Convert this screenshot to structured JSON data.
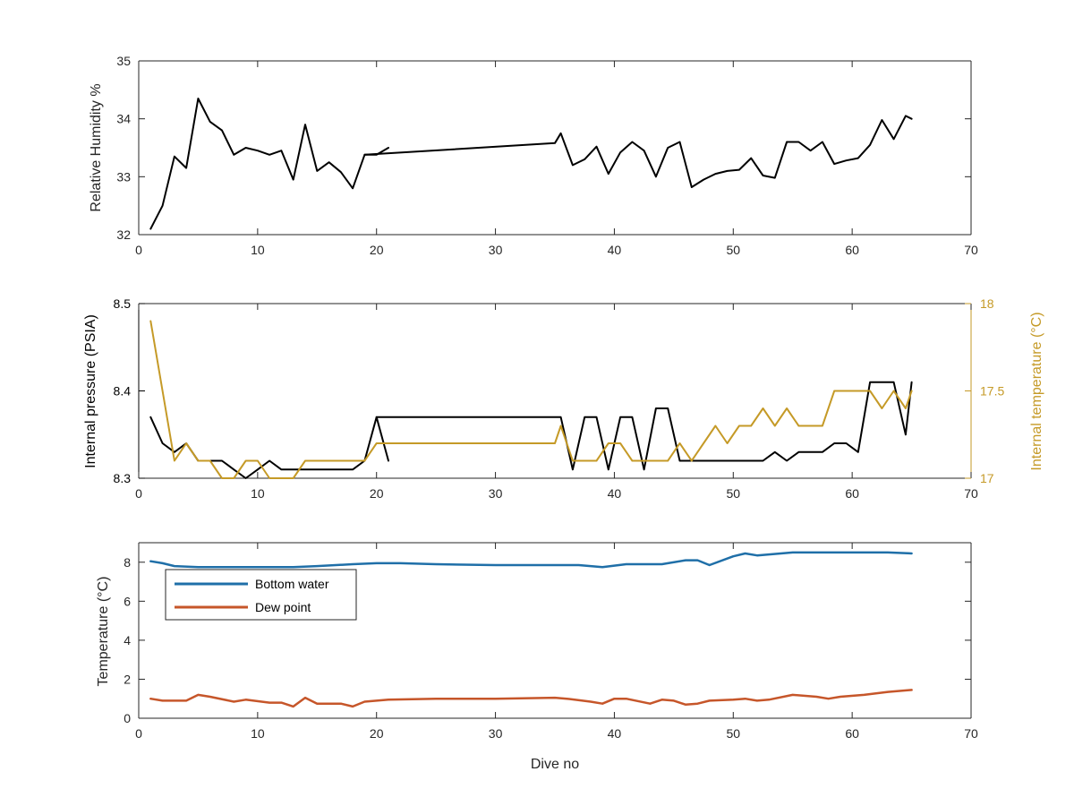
{
  "chart_data": [
    {
      "type": "line",
      "ylabel": "Relative Humidity %",
      "xlim": [
        0,
        70
      ],
      "ylim": [
        32,
        35
      ],
      "xticks": [
        0,
        10,
        20,
        30,
        40,
        50,
        60,
        70
      ],
      "yticks": [
        32,
        33,
        34,
        35
      ],
      "grid": false,
      "series": [
        {
          "color": "#000000",
          "segments": [
            [
              [
                1,
                32.1
              ],
              [
                2,
                32.5
              ],
              [
                3,
                33.35
              ],
              [
                4,
                33.15
              ],
              [
                5,
                34.35
              ],
              [
                6,
                33.95
              ],
              [
                7,
                33.8
              ],
              [
                8,
                33.38
              ],
              [
                9,
                33.5
              ],
              [
                10,
                33.45
              ],
              [
                11,
                33.38
              ],
              [
                12,
                33.45
              ],
              [
                13,
                32.95
              ],
              [
                14,
                33.9
              ],
              [
                15,
                33.1
              ],
              [
                16,
                33.25
              ],
              [
                17,
                33.08
              ],
              [
                18,
                32.8
              ],
              [
                19,
                33.38
              ],
              [
                20,
                33.38
              ],
              [
                21,
                33.5
              ]
            ],
            [
              [
                19,
                33.38
              ],
              [
                35,
                33.58
              ],
              [
                35.5,
                33.75
              ],
              [
                36.5,
                33.2
              ],
              [
                37.5,
                33.3
              ],
              [
                38.5,
                33.52
              ],
              [
                39.5,
                33.05
              ],
              [
                40.5,
                33.42
              ],
              [
                41.5,
                33.6
              ],
              [
                42.5,
                33.45
              ],
              [
                43.5,
                33.0
              ],
              [
                44.5,
                33.5
              ],
              [
                45.5,
                33.6
              ],
              [
                46.5,
                32.82
              ],
              [
                47.5,
                32.95
              ],
              [
                48.5,
                33.05
              ],
              [
                49.5,
                33.1
              ],
              [
                50.5,
                33.12
              ],
              [
                51.5,
                33.32
              ],
              [
                52.5,
                33.02
              ],
              [
                53.5,
                32.98
              ],
              [
                54.5,
                33.6
              ],
              [
                55.5,
                33.6
              ],
              [
                56.5,
                33.45
              ],
              [
                57.5,
                33.6
              ],
              [
                58.5,
                33.22
              ],
              [
                59.5,
                33.28
              ],
              [
                60.5,
                33.32
              ],
              [
                61.5,
                33.55
              ],
              [
                62.5,
                33.98
              ],
              [
                63.5,
                33.65
              ],
              [
                64.5,
                34.05
              ],
              [
                65,
                34.0
              ]
            ]
          ]
        }
      ]
    },
    {
      "type": "line",
      "ylabel": "Internal pressure (PSIA)",
      "y2label": "Internal temperature (°C)",
      "xlim": [
        0,
        70
      ],
      "ylim": [
        8.3,
        8.5
      ],
      "y2lim": [
        17,
        18
      ],
      "xticks": [
        0,
        10,
        20,
        30,
        40,
        50,
        60,
        70
      ],
      "yticks": [
        "8.3",
        "8.4",
        "8.5"
      ],
      "y2ticks": [
        "17",
        "17.5",
        "18"
      ],
      "grid": false,
      "left_axis_color": "#000000",
      "right_axis_color": "#c59a27",
      "series": [
        {
          "axis": "left",
          "color": "#000000",
          "segments": [
            [
              [
                1,
                8.37
              ],
              [
                2,
                8.34
              ],
              [
                3,
                8.33
              ],
              [
                4,
                8.34
              ],
              [
                5,
                8.32
              ],
              [
                6,
                8.32
              ],
              [
                7,
                8.32
              ],
              [
                8,
                8.31
              ],
              [
                9,
                8.3
              ],
              [
                10,
                8.31
              ],
              [
                11,
                8.32
              ],
              [
                12,
                8.31
              ],
              [
                13,
                8.31
              ],
              [
                14,
                8.31
              ],
              [
                15,
                8.31
              ],
              [
                16,
                8.31
              ],
              [
                17,
                8.31
              ],
              [
                18,
                8.31
              ],
              [
                19,
                8.32
              ],
              [
                20,
                8.37
              ],
              [
                21,
                8.32
              ]
            ],
            [
              [
                20,
                8.37
              ],
              [
                35,
                8.37
              ],
              [
                35.5,
                8.37
              ],
              [
                36.5,
                8.31
              ],
              [
                37.5,
                8.37
              ],
              [
                38.5,
                8.37
              ],
              [
                39.5,
                8.31
              ],
              [
                40.5,
                8.37
              ],
              [
                41.5,
                8.37
              ],
              [
                42.5,
                8.31
              ],
              [
                43.5,
                8.38
              ],
              [
                44.5,
                8.38
              ],
              [
                45.5,
                8.32
              ],
              [
                46.5,
                8.32
              ],
              [
                47.5,
                8.32
              ],
              [
                48.5,
                8.32
              ],
              [
                49.5,
                8.32
              ],
              [
                50.5,
                8.32
              ],
              [
                51.5,
                8.32
              ],
              [
                52.5,
                8.32
              ],
              [
                53.5,
                8.33
              ],
              [
                54.5,
                8.32
              ],
              [
                55.5,
                8.33
              ],
              [
                56.5,
                8.33
              ],
              [
                57.5,
                8.33
              ],
              [
                58.5,
                8.34
              ],
              [
                59.5,
                8.34
              ],
              [
                60.5,
                8.33
              ],
              [
                61.5,
                8.41
              ],
              [
                62.5,
                8.41
              ],
              [
                63.5,
                8.41
              ],
              [
                64.5,
                8.35
              ],
              [
                65,
                8.41
              ]
            ]
          ]
        },
        {
          "axis": "right",
          "color": "#c59a27",
          "segments": [
            [
              [
                1,
                17.9
              ],
              [
                2,
                17.5
              ],
              [
                3,
                17.1
              ],
              [
                4,
                17.2
              ],
              [
                5,
                17.1
              ],
              [
                6,
                17.1
              ],
              [
                7,
                17.0
              ],
              [
                8,
                17.0
              ],
              [
                9,
                17.1
              ],
              [
                10,
                17.1
              ],
              [
                11,
                17.0
              ],
              [
                12,
                17.0
              ],
              [
                13,
                17.0
              ],
              [
                14,
                17.1
              ],
              [
                15,
                17.1
              ],
              [
                16,
                17.1
              ],
              [
                17,
                17.1
              ],
              [
                18,
                17.1
              ],
              [
                19,
                17.1
              ],
              [
                20,
                17.2
              ],
              [
                21,
                17.2
              ],
              [
                35,
                17.2
              ],
              [
                35.5,
                17.3
              ],
              [
                36.5,
                17.1
              ],
              [
                37.5,
                17.1
              ],
              [
                38.5,
                17.1
              ],
              [
                39.5,
                17.2
              ],
              [
                40.5,
                17.2
              ],
              [
                41.5,
                17.1
              ],
              [
                42.5,
                17.1
              ],
              [
                43.5,
                17.1
              ],
              [
                44.5,
                17.1
              ],
              [
                45.5,
                17.2
              ],
              [
                46.5,
                17.1
              ],
              [
                47.5,
                17.2
              ],
              [
                48.5,
                17.3
              ],
              [
                49.5,
                17.2
              ],
              [
                50.5,
                17.3
              ],
              [
                51.5,
                17.3
              ],
              [
                52.5,
                17.4
              ],
              [
                53.5,
                17.3
              ],
              [
                54.5,
                17.4
              ],
              [
                55.5,
                17.3
              ],
              [
                56.5,
                17.3
              ],
              [
                57.5,
                17.3
              ],
              [
                58.5,
                17.5
              ],
              [
                59.5,
                17.5
              ],
              [
                60.5,
                17.5
              ],
              [
                61.5,
                17.5
              ],
              [
                62.5,
                17.4
              ],
              [
                63.5,
                17.5
              ],
              [
                64.5,
                17.4
              ],
              [
                65,
                17.5
              ]
            ]
          ]
        }
      ]
    },
    {
      "type": "line",
      "xlabel": "Dive no",
      "ylabel": "Temperature (°C)",
      "xlim": [
        0,
        70
      ],
      "ylim": [
        0,
        9
      ],
      "xticks": [
        0,
        10,
        20,
        30,
        40,
        50,
        60,
        70
      ],
      "yticks": [
        0,
        2,
        4,
        6,
        8
      ],
      "grid": false,
      "legend_position": "top-left",
      "series": [
        {
          "name": "Bottom water",
          "color": "#1f6fa8",
          "segments": [
            [
              [
                1,
                8.05
              ],
              [
                2,
                7.95
              ],
              [
                3,
                7.8
              ],
              [
                5,
                7.75
              ],
              [
                7,
                7.75
              ],
              [
                10,
                7.75
              ],
              [
                13,
                7.75
              ],
              [
                15,
                7.8
              ],
              [
                18,
                7.9
              ],
              [
                20,
                7.95
              ],
              [
                22,
                7.95
              ],
              [
                25,
                7.9
              ],
              [
                30,
                7.85
              ],
              [
                35,
                7.85
              ],
              [
                37,
                7.85
              ],
              [
                39,
                7.75
              ],
              [
                41,
                7.9
              ],
              [
                44,
                7.9
              ],
              [
                46,
                8.1
              ],
              [
                47,
                8.1
              ],
              [
                48,
                7.85
              ],
              [
                50,
                8.3
              ],
              [
                51,
                8.45
              ],
              [
                52,
                8.35
              ],
              [
                55,
                8.5
              ],
              [
                60,
                8.5
              ],
              [
                63,
                8.5
              ],
              [
                65,
                8.45
              ]
            ]
          ]
        },
        {
          "name": "Dew point",
          "color": "#c6562a",
          "segments": [
            [
              [
                1,
                1.0
              ],
              [
                2,
                0.9
              ],
              [
                4,
                0.9
              ],
              [
                5,
                1.2
              ],
              [
                6,
                1.1
              ],
              [
                8,
                0.85
              ],
              [
                9,
                0.95
              ],
              [
                11,
                0.8
              ],
              [
                12,
                0.8
              ],
              [
                13,
                0.6
              ],
              [
                14,
                1.05
              ],
              [
                15,
                0.75
              ],
              [
                17,
                0.75
              ],
              [
                18,
                0.6
              ],
              [
                19,
                0.85
              ],
              [
                21,
                0.95
              ],
              [
                25,
                1.0
              ],
              [
                30,
                1.0
              ],
              [
                35,
                1.05
              ],
              [
                36,
                1.0
              ],
              [
                38,
                0.85
              ],
              [
                39,
                0.75
              ],
              [
                40,
                1.0
              ],
              [
                41,
                1.0
              ],
              [
                43,
                0.75
              ],
              [
                44,
                0.95
              ],
              [
                45,
                0.9
              ],
              [
                46,
                0.7
              ],
              [
                47,
                0.75
              ],
              [
                48,
                0.9
              ],
              [
                50,
                0.95
              ],
              [
                51,
                1.0
              ],
              [
                52,
                0.9
              ],
              [
                53,
                0.95
              ],
              [
                55,
                1.2
              ],
              [
                57,
                1.1
              ],
              [
                58,
                1.0
              ],
              [
                59,
                1.1
              ],
              [
                61,
                1.2
              ],
              [
                63,
                1.35
              ],
              [
                65,
                1.45
              ]
            ]
          ]
        }
      ]
    }
  ]
}
